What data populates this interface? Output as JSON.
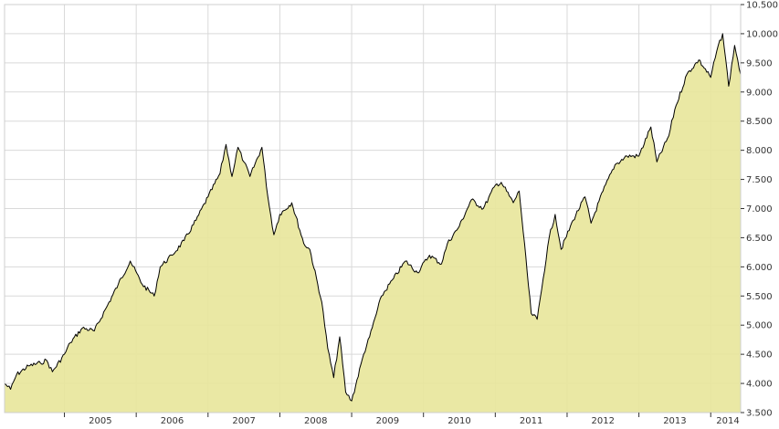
{
  "chart_data": {
    "type": "area",
    "title": "",
    "xlabel": "",
    "ylabel": "",
    "x_tick_labels": [
      "2005",
      "2006",
      "2007",
      "2008",
      "2009",
      "2010",
      "2011",
      "2012",
      "2013",
      "2014"
    ],
    "y_tick_labels": [
      "3.500",
      "4.000",
      "4.500",
      "5.000",
      "5.500",
      "6.000",
      "6.500",
      "7.000",
      "7.500",
      "8.000",
      "8.500",
      "9.000",
      "9.500",
      "10.000",
      "10.500"
    ],
    "ylim": [
      3500,
      10500
    ],
    "xlim": [
      "2004-03",
      "2014-06"
    ],
    "grid": true,
    "legend": "none",
    "colors": {
      "fill": "#e8e59a",
      "line": "#000000",
      "grid": "#d9d9d9",
      "axis": "#333333"
    },
    "series": [
      {
        "x": [
          "2004-03",
          "2004-04",
          "2004-05",
          "2004-07",
          "2004-09",
          "2004-10",
          "2004-11",
          "2005-01",
          "2005-02",
          "2005-04",
          "2005-06",
          "2005-08",
          "2005-10",
          "2005-12",
          "2006-02",
          "2006-04",
          "2006-05",
          "2006-07",
          "2006-09",
          "2006-11",
          "2007-01",
          "2007-03",
          "2007-04",
          "2007-05",
          "2007-06",
          "2007-07",
          "2007-08",
          "2007-10",
          "2007-11",
          "2007-12",
          "2008-01",
          "2008-03",
          "2008-05",
          "2008-06",
          "2008-08",
          "2008-09",
          "2008-10",
          "2008-11",
          "2008-12",
          "2009-01",
          "2009-03",
          "2009-04",
          "2009-06",
          "2009-08",
          "2009-10",
          "2009-12",
          "2010-02",
          "2010-04",
          "2010-05",
          "2010-07",
          "2010-09",
          "2010-11",
          "2011-01",
          "2011-02",
          "2011-04",
          "2011-05",
          "2011-07",
          "2011-08",
          "2011-09",
          "2011-10",
          "2011-11",
          "2011-12",
          "2012-02",
          "2012-04",
          "2012-05",
          "2012-07",
          "2012-09",
          "2012-11",
          "2013-01",
          "2013-03",
          "2013-04",
          "2013-06",
          "2013-07",
          "2013-09",
          "2013-11",
          "2014-01",
          "2014-02",
          "2014-03",
          "2014-04",
          "2014-05",
          "2014-06"
        ],
        "values": [
          4000,
          3900,
          4150,
          4300,
          4350,
          4400,
          4200,
          4500,
          4700,
          4950,
          4900,
          5300,
          5700,
          6100,
          5700,
          5500,
          6000,
          6200,
          6450,
          6800,
          7200,
          7600,
          8100,
          7550,
          8050,
          7800,
          7550,
          8050,
          7200,
          6550,
          6900,
          7100,
          6400,
          6300,
          5400,
          4600,
          4100,
          4800,
          3850,
          3700,
          4500,
          4800,
          5500,
          5800,
          6100,
          5900,
          6200,
          6050,
          6400,
          6700,
          7150,
          7000,
          7400,
          7450,
          7100,
          7300,
          5200,
          5100,
          5800,
          6500,
          6900,
          6300,
          6800,
          7200,
          6750,
          7300,
          7750,
          7900,
          7900,
          8400,
          7800,
          8250,
          8700,
          9300,
          9550,
          9250,
          9700,
          10000,
          9100,
          9800,
          9300
        ]
      }
    ]
  }
}
